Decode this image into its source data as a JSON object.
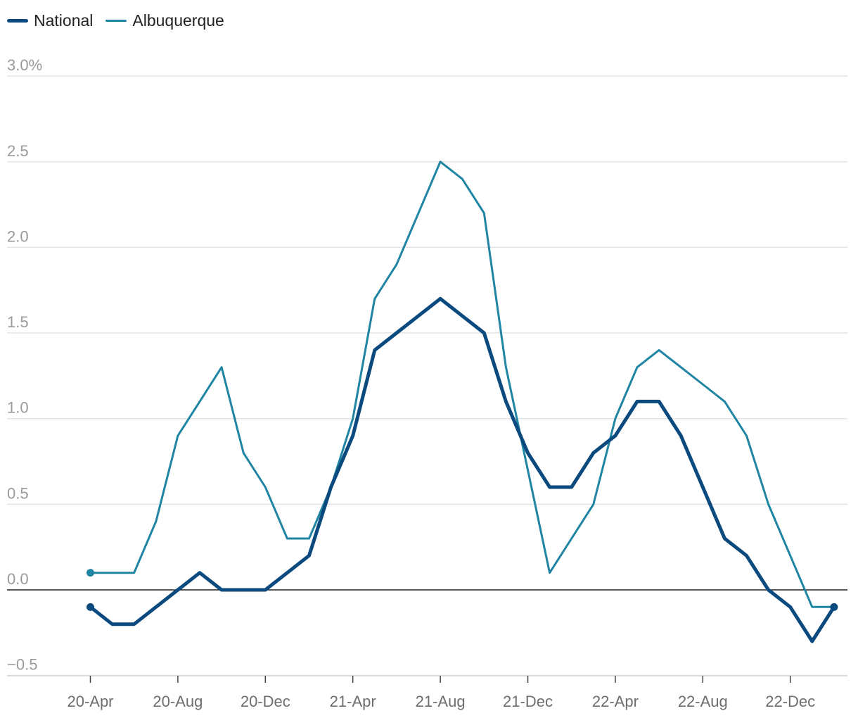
{
  "chart_data": {
    "type": "line",
    "title": "",
    "xlabel": "",
    "ylabel": "",
    "x": [
      "20-Apr",
      "20-May",
      "20-Jun",
      "20-Jul",
      "20-Aug",
      "20-Sep",
      "20-Oct",
      "20-Nov",
      "20-Dec",
      "21-Jan",
      "21-Feb",
      "21-Mar",
      "21-Apr",
      "21-May",
      "21-Jun",
      "21-Jul",
      "21-Aug",
      "21-Sep",
      "21-Oct",
      "21-Nov",
      "21-Dec",
      "22-Jan",
      "22-Feb",
      "22-Mar",
      "22-Apr",
      "22-May",
      "22-Jun",
      "22-Jul",
      "22-Aug",
      "22-Sep",
      "22-Oct",
      "22-Nov",
      "22-Dec",
      "23-Jan",
      "23-Feb"
    ],
    "x_tick_labels": [
      "20-Apr",
      "20-Aug",
      "20-Dec",
      "21-Apr",
      "21-Aug",
      "21-Dec",
      "22-Apr",
      "22-Aug",
      "22-Dec"
    ],
    "y_tick_labels": [
      "3.0%",
      "2.5",
      "2.0",
      "1.5",
      "1.0",
      "0.5",
      "0.0",
      "−0.5"
    ],
    "ylim": [
      -0.5,
      3.0
    ],
    "y_ticks": [
      3.0,
      2.5,
      2.0,
      1.5,
      1.0,
      0.5,
      0.0,
      -0.5
    ],
    "grid": true,
    "legend_position": "top-left",
    "series": [
      {
        "name": "National",
        "color": "#0b4a7e",
        "values": [
          -0.1,
          -0.2,
          -0.2,
          -0.1,
          0.0,
          0.1,
          0.0,
          0.0,
          0.0,
          0.1,
          0.2,
          0.6,
          0.9,
          1.4,
          1.5,
          1.6,
          1.7,
          1.6,
          1.5,
          1.1,
          0.8,
          0.6,
          0.6,
          0.8,
          0.9,
          1.1,
          1.1,
          0.9,
          0.6,
          0.3,
          0.2,
          0.0,
          -0.1,
          -0.3,
          -0.1
        ]
      },
      {
        "name": "Albuquerque",
        "color": "#2084a3",
        "values": [
          0.1,
          0.1,
          0.1,
          0.4,
          0.9,
          1.1,
          1.3,
          0.8,
          0.6,
          0.3,
          0.3,
          0.6,
          1.0,
          1.7,
          1.9,
          2.2,
          2.5,
          2.4,
          2.2,
          1.3,
          0.7,
          0.1,
          0.3,
          0.5,
          1.0,
          1.3,
          1.4,
          1.3,
          1.2,
          1.1,
          0.9,
          0.5,
          0.2,
          -0.1,
          -0.1
        ]
      }
    ]
  }
}
